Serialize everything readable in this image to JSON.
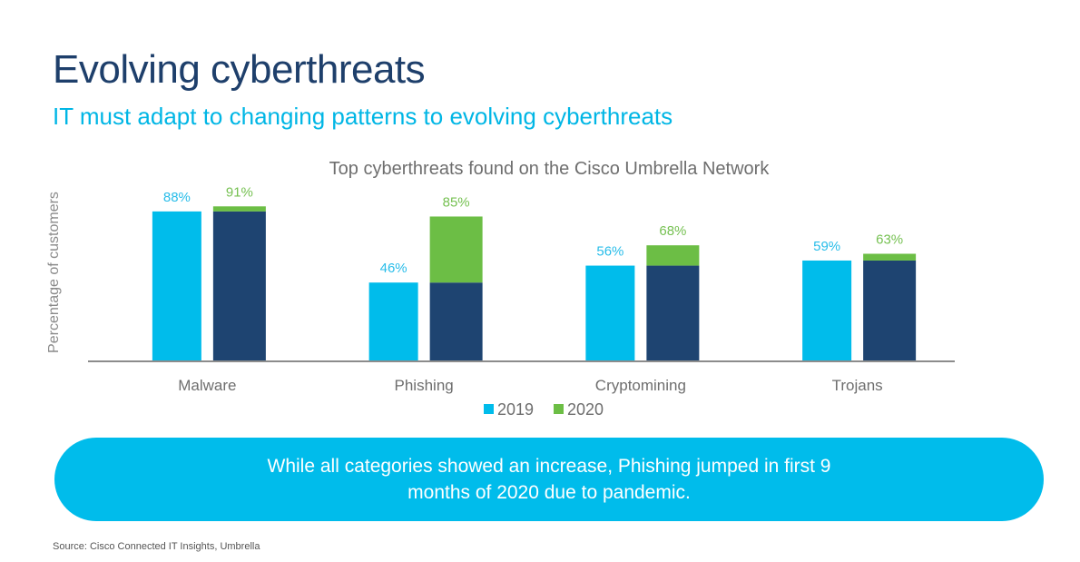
{
  "header": {
    "title": "Evolving cyberthreats",
    "subtitle": "IT must adapt to changing patterns to evolving cyberthreats"
  },
  "chart_data": {
    "type": "bar",
    "title": "Top cyberthreats found on the Cisco Umbrella Network",
    "xlabel": "",
    "ylabel": "Percentage of customers",
    "ylim": [
      0,
      100
    ],
    "grid": false,
    "legend": "bottom-center",
    "categories": [
      "Malware",
      "Phishing",
      "Cryptomining",
      "Trojans"
    ],
    "series": [
      {
        "name": "2019",
        "values": [
          88,
          46,
          56,
          59
        ],
        "color": "#00bceb",
        "labels": [
          "88%",
          "46%",
          "56%",
          "59%"
        ]
      },
      {
        "name": "2020",
        "values": [
          91,
          85,
          68,
          63
        ],
        "color": "#6cbe45",
        "base_color": "#1e4471",
        "labels": [
          "91%",
          "85%",
          "68%",
          "63%"
        ]
      }
    ],
    "note": "2020 bars are drawn as the 2019 value (dark navy) with the increase stacked on top in green"
  },
  "callout": {
    "text": "While all categories showed an increase, Phishing jumped in first 9 months of 2020 due to pandemic."
  },
  "footer": {
    "source": "Source: Cisco Connected IT Insights, Umbrella"
  }
}
